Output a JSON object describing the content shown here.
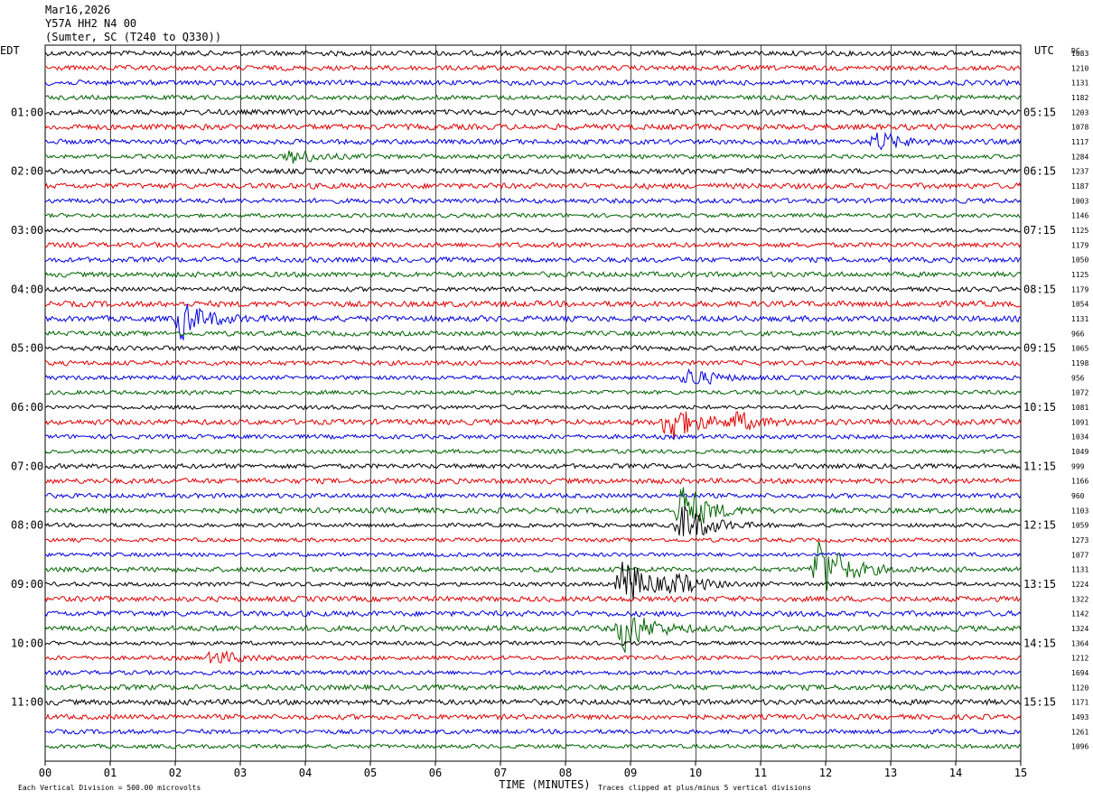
{
  "header": {
    "date": "Mar16,2026",
    "station": "Y57A HH2 N4 00",
    "location": "(Sumter, SC (T240 to Q330))"
  },
  "labels": {
    "left_tz": "EDT",
    "right_tz": "UTC",
    "dc": "DC",
    "xlabel": "TIME (MINUTES)",
    "footer_left": "Each Vertical Division =  500.00 microvolts",
    "footer_right": "Traces clipped at plus/minus 5 vertical divisions"
  },
  "colors": {
    "trace_cycle": [
      "#000000",
      "#e00000",
      "#0000e0",
      "#006400"
    ],
    "grid": "#000000",
    "background": "#ffffff"
  },
  "chart_data": {
    "type": "line",
    "title": "Mar16,2026 Y57A HH2 N4 00 (Sumter, SC (T240 to Q330))",
    "xlabel": "TIME (MINUTES)",
    "xlim": [
      0,
      15
    ],
    "x_ticks": [
      "00",
      "01",
      "02",
      "03",
      "04",
      "05",
      "06",
      "07",
      "08",
      "09",
      "10",
      "11",
      "12",
      "13",
      "14",
      "15"
    ],
    "rows_count": 48,
    "minutes_per_row": 15,
    "left_hour_labels": [
      "01:00",
      "02:00",
      "03:00",
      "04:00",
      "05:00",
      "06:00",
      "07:00",
      "08:00",
      "09:00",
      "10:00",
      "11:00"
    ],
    "right_hour_labels": [
      "05:15",
      "06:15",
      "07:15",
      "08:15",
      "09:15",
      "10:15",
      "11:15",
      "12:15",
      "13:15",
      "14:15",
      "15:15"
    ],
    "hour_label_row_indices": [
      4,
      8,
      12,
      16,
      20,
      24,
      28,
      32,
      36,
      40,
      44
    ],
    "dc_offsets": [
      1083,
      1210,
      1131,
      1182,
      1203,
      1078,
      1117,
      1284,
      1237,
      1187,
      1003,
      1146,
      1125,
      1179,
      1050,
      1125,
      1179,
      1054,
      1131,
      966,
      1065,
      1198,
      956,
      1072,
      1081,
      1091,
      1034,
      1049,
      999,
      1166,
      960,
      1103,
      1059,
      1273,
      1077,
      1131,
      1224,
      1322,
      1142,
      1324,
      1364,
      1212,
      1694,
      1120,
      1171,
      1493,
      1261,
      1096
    ],
    "events": [
      {
        "row": 6,
        "minute": 12.8,
        "amplitude": 1.3
      },
      {
        "row": 7,
        "minute": 3.8,
        "amplitude": 1.0
      },
      {
        "row": 18,
        "minute": 2.1,
        "amplitude": 2.5
      },
      {
        "row": 22,
        "minute": 9.9,
        "amplitude": 1.3
      },
      {
        "row": 25,
        "minute": 9.6,
        "amplitude": 3.0
      },
      {
        "row": 25,
        "minute": 10.6,
        "amplitude": 1.2
      },
      {
        "row": 31,
        "minute": 9.8,
        "amplitude": 3.6
      },
      {
        "row": 32,
        "minute": 9.8,
        "amplitude": 3.0
      },
      {
        "row": 35,
        "minute": 11.9,
        "amplitude": 4.5
      },
      {
        "row": 36,
        "minute": 8.9,
        "amplitude": 4.0
      },
      {
        "row": 36,
        "minute": 9.7,
        "amplitude": 1.2
      },
      {
        "row": 39,
        "minute": 8.9,
        "amplitude": 3.0
      },
      {
        "row": 41,
        "minute": 2.6,
        "amplitude": 1.0
      }
    ],
    "grid": true,
    "trace_clip_divisions": 5,
    "division_microvolts": 500.0
  }
}
